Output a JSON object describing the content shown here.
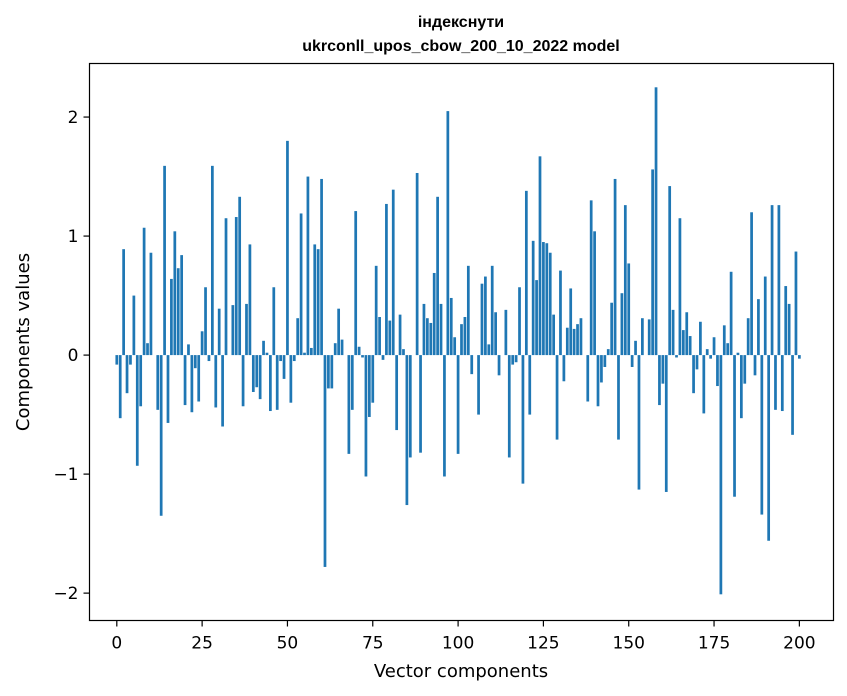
{
  "chart_data": {
    "type": "bar",
    "title": "індекснути",
    "subtitle": "ukrconll_upos_cbow_200_10_2022 model",
    "xlabel": "Vector components",
    "ylabel": "Components values",
    "xlim": [
      -8,
      210
    ],
    "ylim": [
      -2.23,
      2.45
    ],
    "x_ticks": [
      0,
      25,
      50,
      75,
      100,
      125,
      150,
      175,
      200
    ],
    "y_ticks": [
      -2,
      -1,
      0,
      1,
      2
    ],
    "x_tick_labels": [
      "0",
      "25",
      "50",
      "75",
      "100",
      "125",
      "150",
      "175",
      "200"
    ],
    "y_tick_labels": [
      "−2",
      "−1",
      "0",
      "1",
      "2"
    ],
    "bar_color": "#1f77b4",
    "grid": false,
    "values": [
      -0.08,
      -0.53,
      0.89,
      -0.32,
      -0.08,
      0.5,
      -0.93,
      -0.43,
      1.07,
      0.1,
      0.86,
      0.0,
      -0.46,
      -1.35,
      1.59,
      -0.57,
      0.64,
      1.04,
      0.73,
      0.84,
      -0.42,
      0.09,
      -0.48,
      -0.11,
      -0.39,
      0.2,
      0.57,
      -0.05,
      1.59,
      -0.44,
      0.39,
      -0.6,
      1.15,
      0.0,
      0.42,
      1.16,
      1.33,
      -0.43,
      0.43,
      0.93,
      -0.31,
      -0.27,
      -0.37,
      0.12,
      0.02,
      -0.47,
      0.57,
      -0.46,
      -0.05,
      -0.2,
      1.8,
      -0.4,
      -0.05,
      0.31,
      1.19,
      0.02,
      1.5,
      0.06,
      0.93,
      0.89,
      1.48,
      -1.78,
      -0.28,
      -0.28,
      0.1,
      0.39,
      0.13,
      0.0,
      -0.83,
      -0.46,
      1.21,
      0.07,
      -0.02,
      -1.02,
      -0.52,
      -0.4,
      0.75,
      0.32,
      -0.04,
      1.27,
      0.29,
      1.39,
      -0.63,
      0.34,
      0.05,
      -1.26,
      -0.86,
      0.0,
      1.53,
      -0.82,
      0.43,
      0.31,
      0.27,
      0.69,
      1.33,
      0.43,
      -1.02,
      2.05,
      0.48,
      0.15,
      -0.83,
      0.26,
      0.32,
      0.75,
      -0.16,
      0.0,
      -0.5,
      0.6,
      0.66,
      0.09,
      0.75,
      0.36,
      -0.17,
      0.0,
      0.38,
      -0.86,
      -0.08,
      -0.06,
      0.57,
      -1.08,
      1.38,
      -0.5,
      0.96,
      0.63,
      1.67,
      0.95,
      0.94,
      0.86,
      0.34,
      -0.71,
      0.71,
      -0.22,
      0.23,
      0.56,
      0.22,
      0.26,
      0.31,
      0.0,
      -0.39,
      1.3,
      1.04,
      -0.43,
      -0.23,
      -0.1,
      0.05,
      0.44,
      1.48,
      -0.71,
      0.52,
      1.26,
      0.77,
      -0.1,
      0.12,
      -1.13,
      0.31,
      0.0,
      0.3,
      1.56,
      2.25,
      -0.42,
      -0.24,
      -1.15,
      1.42,
      0.38,
      -0.02,
      1.15,
      0.21,
      0.36,
      0.16,
      -0.32,
      -0.12,
      0.28,
      -0.49,
      0.05,
      -0.03,
      0.15,
      -0.26,
      -2.01,
      0.25,
      0.1,
      0.7,
      -1.19,
      0.02,
      -0.53,
      -0.24,
      0.31,
      1.2,
      -0.17,
      0.47,
      -1.34,
      0.66,
      -1.56,
      1.26,
      -0.46,
      1.26,
      -0.47,
      0.58,
      0.43,
      -0.67,
      0.87,
      -0.03
    ]
  }
}
